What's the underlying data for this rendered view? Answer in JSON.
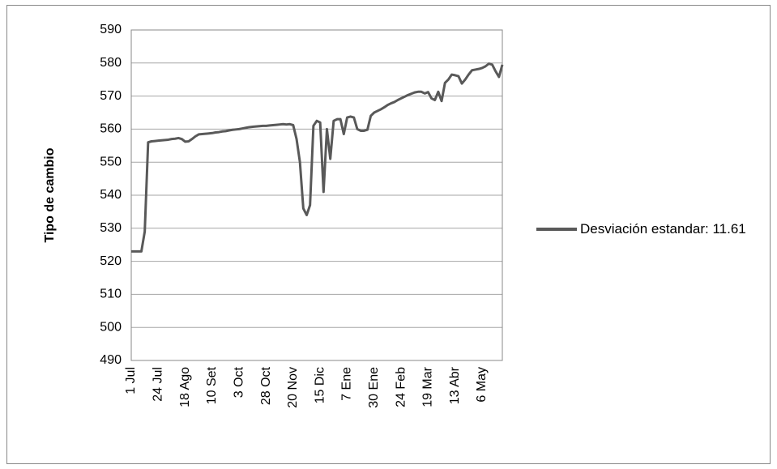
{
  "chart_data": {
    "type": "line",
    "ylabel": "Tipo de cambio",
    "categories": [
      "1 Jul",
      null,
      null,
      null,
      null,
      null,
      null,
      null,
      "24 Jul",
      null,
      null,
      null,
      null,
      null,
      null,
      null,
      "18 Ago",
      null,
      null,
      null,
      null,
      null,
      null,
      null,
      "10 Set",
      null,
      null,
      null,
      null,
      null,
      null,
      null,
      "3 Oct",
      null,
      null,
      null,
      null,
      null,
      null,
      null,
      "28 Oct",
      null,
      null,
      null,
      null,
      null,
      null,
      null,
      "20 Nov",
      null,
      null,
      null,
      null,
      null,
      null,
      null,
      "15 Dic",
      null,
      null,
      null,
      null,
      null,
      null,
      null,
      "7 Ene",
      null,
      null,
      null,
      null,
      null,
      null,
      null,
      "30 Ene",
      null,
      null,
      null,
      null,
      null,
      null,
      null,
      "24 Feb",
      null,
      null,
      null,
      null,
      null,
      null,
      null,
      "19 Mar",
      null,
      null,
      null,
      null,
      null,
      null,
      null,
      "13 Abr",
      null,
      null,
      null,
      null,
      null,
      null,
      null,
      "6 May",
      null,
      null,
      null,
      null,
      null,
      null
    ],
    "series": [
      {
        "name": "Desviación estandar: 11.61",
        "color": "#595959",
        "values": [
          523,
          523,
          523,
          523,
          529,
          556,
          556.3,
          556.4,
          556.5,
          556.6,
          556.7,
          556.8,
          557,
          557.1,
          557.3,
          557,
          556.2,
          556.3,
          557,
          557.8,
          558.4,
          558.5,
          558.6,
          558.7,
          558.8,
          559,
          559.1,
          559.3,
          559.4,
          559.6,
          559.8,
          559.9,
          560,
          560.2,
          560.4,
          560.6,
          560.7,
          560.8,
          560.9,
          561,
          561,
          561.1,
          561.2,
          561.3,
          561.4,
          561.5,
          561.4,
          561.5,
          561.2,
          557,
          550,
          536,
          534,
          537,
          561,
          562.5,
          562,
          541,
          560,
          551,
          562.5,
          563,
          563,
          558.5,
          563.5,
          563.8,
          563.5,
          560,
          559.5,
          559.5,
          559.8,
          564,
          565,
          565.5,
          566,
          566.6,
          567.3,
          567.8,
          568.2,
          568.8,
          569.3,
          569.8,
          570.3,
          570.7,
          571.1,
          571.3,
          571.3,
          570.8,
          571.2,
          569.3,
          568.8,
          571.3,
          568.5,
          574,
          575,
          576.5,
          576.3,
          576,
          573.8,
          575,
          576.5,
          577.8,
          578,
          578.2,
          578.5,
          579,
          579.8,
          579.5,
          577.5,
          575.8,
          579.5
        ]
      }
    ],
    "ylim": [
      490,
      590
    ],
    "yticks": [
      490,
      500,
      510,
      520,
      530,
      540,
      550,
      560,
      570,
      580,
      590
    ],
    "grid": true,
    "legend": "right"
  }
}
